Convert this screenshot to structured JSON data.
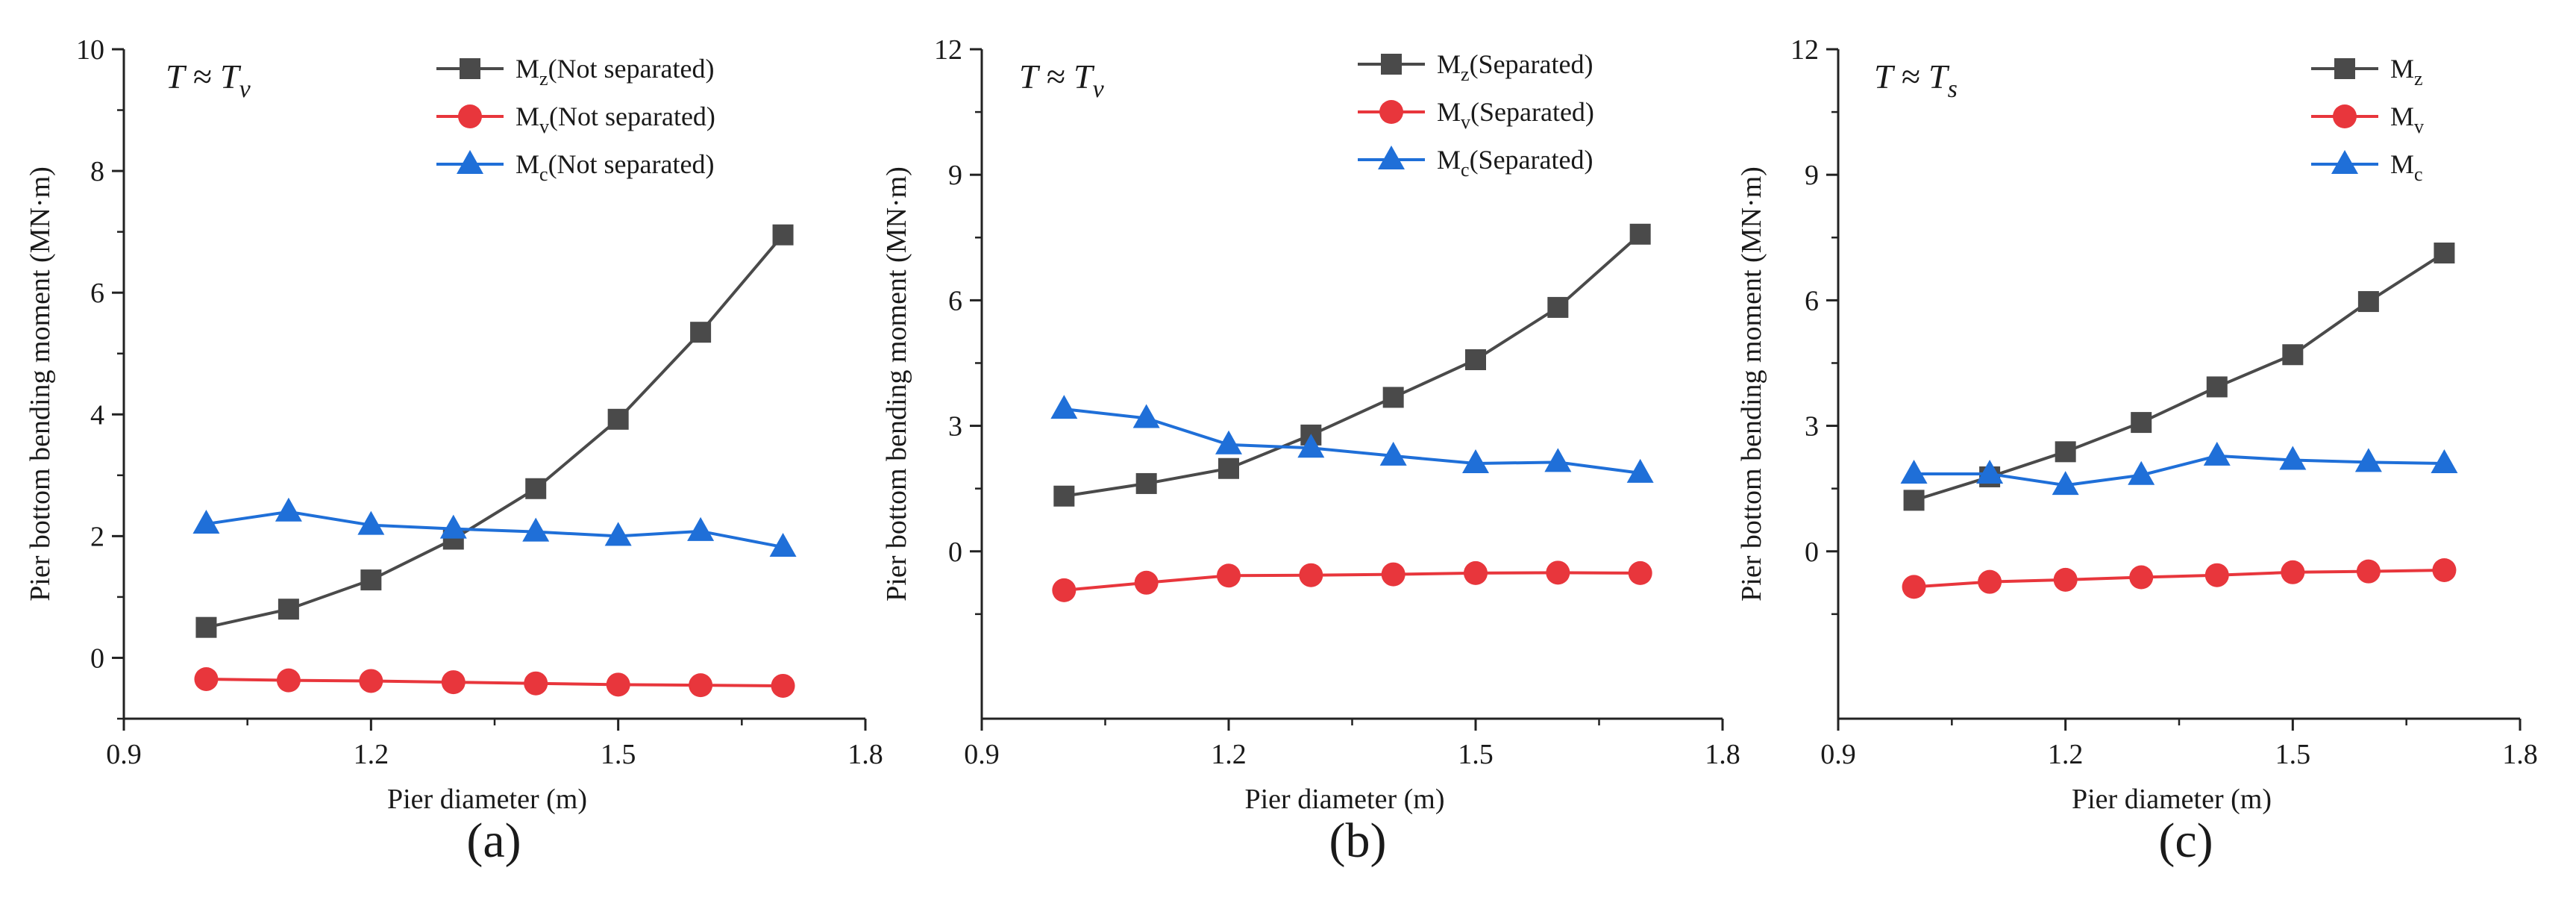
{
  "chart_data": [
    {
      "type": "line",
      "panel_label": "(a)",
      "annotation": "T ≈ T_v",
      "annotation_main": "T ≈ T",
      "annotation_sub": "v",
      "xlabel": "Pier diameter (m)",
      "ylabel": "Pier bottom bending moment (MN·m)",
      "xlim": [
        0.9,
        1.8
      ],
      "ylim": [
        -1,
        10
      ],
      "xticks": [
        0.9,
        1.2,
        1.5,
        1.8
      ],
      "xtick_labels": [
        "0.9",
        "1.2",
        "1.5",
        "1.8"
      ],
      "yticks": [
        0,
        2,
        4,
        6,
        8,
        10
      ],
      "ytick_labels": [
        "0",
        "2",
        "4",
        "6",
        "8",
        "10"
      ],
      "legend_position": "top-right",
      "x": [
        1.0,
        1.1,
        1.2,
        1.3,
        1.4,
        1.5,
        1.6,
        1.7
      ],
      "series": [
        {
          "name": "Mz(Not separated)",
          "label_main": "M",
          "label_sub": "z",
          "label_tail": "(Not separated)",
          "marker": "square",
          "color": "#4a4a4a",
          "values": [
            0.5,
            0.8,
            1.28,
            1.95,
            2.78,
            3.92,
            5.35,
            6.95
          ]
        },
        {
          "name": "Mv(Not separated)",
          "label_main": "M",
          "label_sub": "v",
          "label_tail": "(Not separated)",
          "marker": "circle",
          "color": "#e8363c",
          "values": [
            -0.35,
            -0.37,
            -0.38,
            -0.4,
            -0.42,
            -0.44,
            -0.45,
            -0.46
          ]
        },
        {
          "name": "Mc(Not separated)",
          "label_main": "M",
          "label_sub": "c",
          "label_tail": "(Not separated)",
          "marker": "triangle",
          "color": "#1f6fd8",
          "values": [
            2.2,
            2.4,
            2.18,
            2.12,
            2.07,
            2.0,
            2.08,
            1.82
          ]
        }
      ]
    },
    {
      "type": "line",
      "panel_label": "(b)",
      "annotation": "T ≈ T_v",
      "annotation_main": "T ≈ T",
      "annotation_sub": "v",
      "xlabel": "Pier diameter (m)",
      "ylabel": "Pier bottom bending moment (MN·m)",
      "xlim": [
        0.9,
        1.8
      ],
      "ylim": [
        -4,
        12
      ],
      "xticks": [
        0.9,
        1.2,
        1.5,
        1.8
      ],
      "xtick_labels": [
        "0.9",
        "1.2",
        "1.5",
        "1.8"
      ],
      "yticks": [
        0,
        3,
        6,
        9,
        12
      ],
      "ytick_labels": [
        "0",
        "3",
        "6",
        "9",
        "12"
      ],
      "legend_position": "top-right",
      "x": [
        1.0,
        1.1,
        1.2,
        1.3,
        1.4,
        1.5,
        1.6,
        1.7
      ],
      "series": [
        {
          "name": "Mz(Separated)",
          "label_main": "M",
          "label_sub": "z",
          "label_tail": "(Separated)",
          "marker": "square",
          "color": "#4a4a4a",
          "values": [
            1.32,
            1.62,
            1.98,
            2.78,
            3.68,
            4.58,
            5.83,
            7.58
          ]
        },
        {
          "name": "Mv(Separated)",
          "label_main": "M",
          "label_sub": "v",
          "label_tail": "(Separated)",
          "marker": "circle",
          "color": "#e8363c",
          "values": [
            -0.93,
            -0.75,
            -0.58,
            -0.57,
            -0.55,
            -0.52,
            -0.51,
            -0.52
          ]
        },
        {
          "name": "Mc(Separated)",
          "label_main": "M",
          "label_sub": "c",
          "label_tail": "(Separated)",
          "marker": "triangle",
          "color": "#1f6fd8",
          "values": [
            3.4,
            3.18,
            2.55,
            2.47,
            2.28,
            2.1,
            2.13,
            1.87
          ]
        }
      ]
    },
    {
      "type": "line",
      "panel_label": "(c)",
      "annotation": "T ≈ T_s",
      "annotation_main": "T ≈ T",
      "annotation_sub": "s",
      "xlabel": "Pier diameter (m)",
      "ylabel": "Pier bottom bending moment (MN·m)",
      "xlim": [
        0.9,
        1.8
      ],
      "ylim": [
        -4,
        12
      ],
      "xticks": [
        0.9,
        1.2,
        1.5,
        1.8
      ],
      "xtick_labels": [
        "0.9",
        "1.2",
        "1.5",
        "1.8"
      ],
      "yticks": [
        0,
        3,
        6,
        9,
        12
      ],
      "ytick_labels": [
        "0",
        "3",
        "6",
        "9",
        "12"
      ],
      "legend_position": "top-right",
      "x": [
        1.0,
        1.1,
        1.2,
        1.3,
        1.4,
        1.5,
        1.6,
        1.7
      ],
      "series": [
        {
          "name": "Mz",
          "label_main": "M",
          "label_sub": "z",
          "label_tail": "",
          "marker": "square",
          "color": "#4a4a4a",
          "values": [
            1.22,
            1.78,
            2.38,
            3.08,
            3.93,
            4.7,
            5.97,
            7.13
          ]
        },
        {
          "name": "Mv",
          "label_main": "M",
          "label_sub": "v",
          "label_tail": "",
          "marker": "circle",
          "color": "#e8363c",
          "values": [
            -0.85,
            -0.73,
            -0.68,
            -0.62,
            -0.57,
            -0.5,
            -0.48,
            -0.45
          ]
        },
        {
          "name": "Mc",
          "label_main": "M",
          "label_sub": "c",
          "label_tail": "",
          "marker": "triangle",
          "color": "#1f6fd8",
          "values": [
            1.85,
            1.85,
            1.58,
            1.82,
            2.28,
            2.18,
            2.13,
            2.1
          ]
        }
      ]
    }
  ]
}
